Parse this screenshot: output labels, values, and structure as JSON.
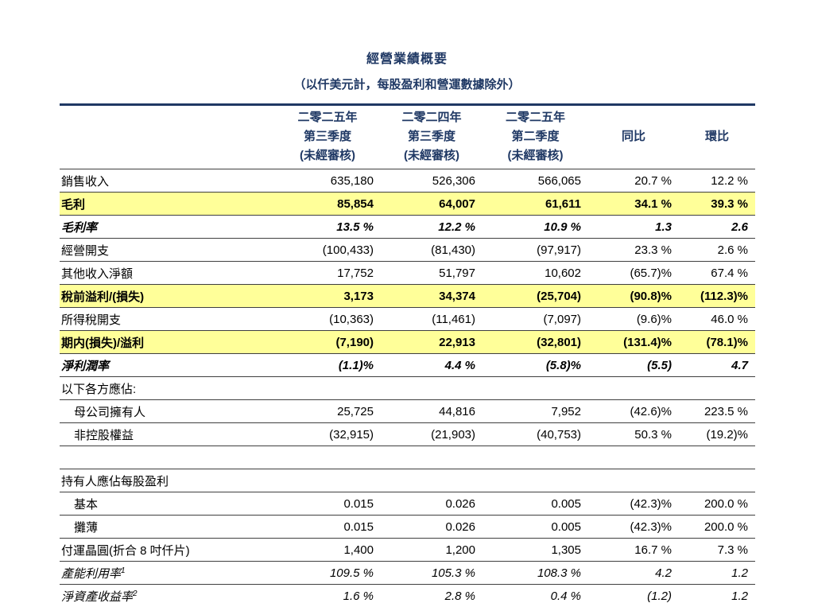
{
  "page": {
    "title": "經營業績概要",
    "subtitle": "（以仟美元計，每股盈利和營運數據除外）"
  },
  "colors": {
    "navy": "#1F3864",
    "row_highlight": "#FFFF99",
    "row_line": "#3F3F3F",
    "text": "#000000"
  },
  "table": {
    "columns": [
      {
        "lines": [
          "二零二五年",
          "第三季度",
          "(未經審核)"
        ]
      },
      {
        "lines": [
          "二零二四年",
          "第三季度",
          "(未經審核)"
        ]
      },
      {
        "lines": [
          "二零二五年",
          "第二季度",
          "(未經審核)"
        ]
      },
      {
        "lines": [
          "",
          "同比",
          ""
        ]
      },
      {
        "lines": [
          "",
          "環比",
          ""
        ]
      }
    ],
    "rows": [
      {
        "label": "銷售收入",
        "values": [
          "635,180",
          "526,306",
          "566,065",
          "20.7 %",
          "12.2 %"
        ],
        "style": "normal"
      },
      {
        "label": "毛利",
        "values": [
          "85,854",
          "64,007",
          "61,611",
          "34.1 %",
          "39.3 %"
        ],
        "style": "highlight"
      },
      {
        "label": "毛利率",
        "values": [
          "13.5 %",
          "12.2 %",
          "10.9 %",
          "1.3",
          "2.6"
        ],
        "style": "bold-italic"
      },
      {
        "label": "經營開支",
        "values": [
          "(100,433)",
          "(81,430)",
          "(97,917)",
          "23.3 %",
          "2.6 %"
        ],
        "style": "normal"
      },
      {
        "label": "其他收入淨額",
        "values": [
          "17,752",
          "51,797",
          "10,602",
          "(65.7)%",
          "67.4 %"
        ],
        "style": "normal"
      },
      {
        "label": "稅前溢利/(損失)",
        "values": [
          "3,173",
          "34,374",
          "(25,704)",
          "(90.8)%",
          "(112.3)%"
        ],
        "style": "highlight"
      },
      {
        "label": "所得稅開支",
        "values": [
          "(10,363)",
          "(11,461)",
          "(7,097)",
          "(9.6)%",
          "46.0 %"
        ],
        "style": "normal"
      },
      {
        "label": "期内(損失)/溢利",
        "values": [
          "(7,190)",
          "22,913",
          "(32,801)",
          "(131.4)%",
          "(78.1)%"
        ],
        "style": "highlight"
      },
      {
        "label": "淨利潤率",
        "values": [
          "(1.1)%",
          "4.4 %",
          "(5.8)%",
          "(5.5)",
          "4.7"
        ],
        "style": "bold-italic"
      },
      {
        "label": "以下各方應佔:",
        "values": [
          "",
          "",
          "",
          "",
          ""
        ],
        "style": "normal"
      },
      {
        "label": "母公司擁有人",
        "values": [
          "25,725",
          "44,816",
          "7,952",
          "(42.6)%",
          "223.5 %"
        ],
        "style": "normal",
        "indent": true
      },
      {
        "label": "非控股權益",
        "values": [
          "(32,915)",
          "(21,903)",
          "(40,753)",
          "50.3 %",
          "(19.2)%"
        ],
        "style": "normal",
        "indent": true
      },
      {
        "spacer": true
      },
      {
        "label": "持有人應佔每股盈利",
        "values": [
          "",
          "",
          "",
          "",
          ""
        ],
        "style": "normal"
      },
      {
        "label": "基本",
        "values": [
          "0.015",
          "0.026",
          "0.005",
          "(42.3)%",
          "200.0 %"
        ],
        "style": "normal",
        "indent": true
      },
      {
        "label": "攤薄",
        "values": [
          "0.015",
          "0.026",
          "0.005",
          "(42.3)%",
          "200.0 %"
        ],
        "style": "normal",
        "indent": true
      },
      {
        "label": "付運晶圓(折合 8 吋仟片)",
        "values": [
          "1,400",
          "1,200",
          "1,305",
          "16.7 %",
          "7.3 %"
        ],
        "style": "normal"
      },
      {
        "label": "產能利用率",
        "label_sup": "1",
        "values": [
          "109.5 %",
          "105.3 %",
          "108.3 %",
          "4.2",
          "1.2"
        ],
        "style": "italic"
      },
      {
        "label": "淨資產收益率",
        "label_sup": "2",
        "values": [
          "1.6 %",
          "2.8 %",
          "0.4 %",
          "(1.2)",
          "1.2"
        ],
        "style": "italic"
      }
    ]
  }
}
